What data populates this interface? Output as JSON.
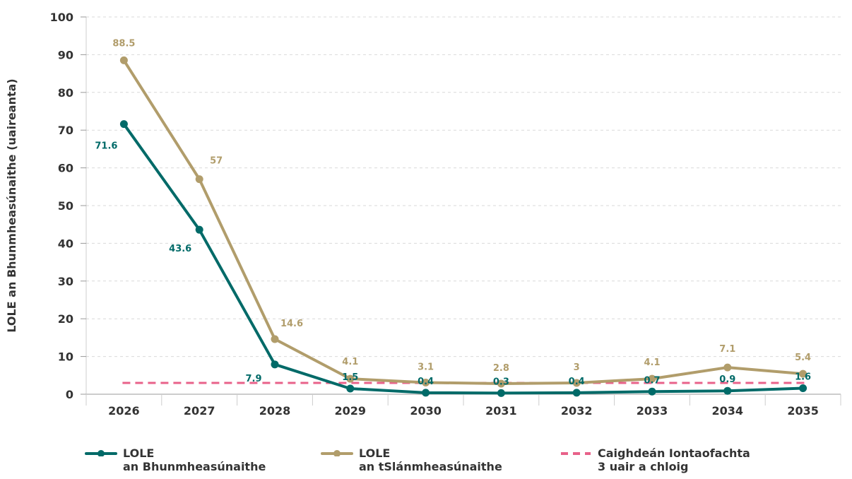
{
  "chart_data": {
    "type": "line",
    "ylabel": "LOLE an Bhunmheasúnaithe (uaireanta)",
    "xlabel": "",
    "categories": [
      "2026",
      "2027",
      "2028",
      "2029",
      "2030",
      "2031",
      "2032",
      "2033",
      "2034",
      "2035"
    ],
    "ylim": [
      0,
      100
    ],
    "yticks": [
      "0",
      "10",
      "20",
      "30",
      "40",
      "50",
      "60",
      "70",
      "80",
      "90",
      "100"
    ],
    "grid": true,
    "legend_position": "bottom",
    "series": [
      {
        "key": "base",
        "color": "#006a68",
        "values": [
          71.6,
          43.6,
          7.9,
          1.5,
          0.4,
          0.3,
          0.4,
          0.7,
          0.9,
          1.6
        ],
        "labels": [
          "71.6",
          "43.6",
          "7.9",
          "1.5",
          "0.4",
          "0.3",
          "0.4",
          "0.7",
          "0.9",
          "1.6"
        ]
      },
      {
        "key": "full",
        "color": "#b19d6b",
        "values": [
          88.5,
          57,
          14.6,
          4.1,
          3.1,
          2.8,
          3,
          4.1,
          7.1,
          5.4
        ],
        "labels": [
          "88.5",
          "57",
          "14.6",
          "4.1",
          "3.1",
          "2.8",
          "3",
          "4.1",
          "7.1",
          "5.4"
        ]
      }
    ],
    "reference_line": {
      "value": 3,
      "color": "#e8628a",
      "style": "dashed"
    }
  },
  "legend": {
    "base": {
      "line1": "LOLE",
      "line2": "an Bhunmheasúnaithe"
    },
    "full": {
      "line1": "LOLE",
      "line2": "an tSlánmheasúnaithe"
    },
    "standard": {
      "line1": "Caighdeán Iontaofachta",
      "line2": "3 uair a chloig"
    }
  }
}
